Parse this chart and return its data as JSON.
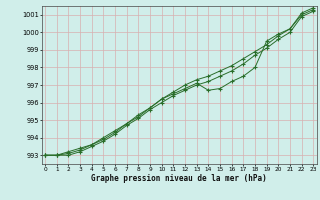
{
  "xlabel": "Graphe pression niveau de la mer (hPa)",
  "xlim": [
    0,
    23
  ],
  "ylim": [
    992.5,
    1001.5
  ],
  "yticks": [
    993,
    994,
    995,
    996,
    997,
    998,
    999,
    1000,
    1001
  ],
  "xticks": [
    0,
    1,
    2,
    3,
    4,
    5,
    6,
    7,
    8,
    9,
    10,
    11,
    12,
    13,
    14,
    15,
    16,
    17,
    18,
    19,
    20,
    21,
    22,
    23
  ],
  "background_color": "#d0eeea",
  "grid_color": "#d8b0b0",
  "line_color": "#2a6e2a",
  "line1_y": [
    993.0,
    993.0,
    993.2,
    993.4,
    993.6,
    994.0,
    994.4,
    994.8,
    995.3,
    995.7,
    996.2,
    996.5,
    996.8,
    997.1,
    996.7,
    996.8,
    997.2,
    997.5,
    998.0,
    999.5,
    999.9,
    1000.2,
    1001.1,
    1001.4
  ],
  "line2_y": [
    993.0,
    993.0,
    993.1,
    993.3,
    993.6,
    993.9,
    994.3,
    994.8,
    995.2,
    995.7,
    996.2,
    996.6,
    997.0,
    997.3,
    997.5,
    997.8,
    998.1,
    998.5,
    998.9,
    999.3,
    999.8,
    1000.2,
    1001.0,
    1001.3
  ],
  "line3_y": [
    993.0,
    993.0,
    993.0,
    993.2,
    993.5,
    993.8,
    994.2,
    994.7,
    995.1,
    995.6,
    996.0,
    996.4,
    996.7,
    997.0,
    997.2,
    997.5,
    997.8,
    998.2,
    998.7,
    999.1,
    999.6,
    1000.0,
    1000.9,
    1001.2
  ]
}
